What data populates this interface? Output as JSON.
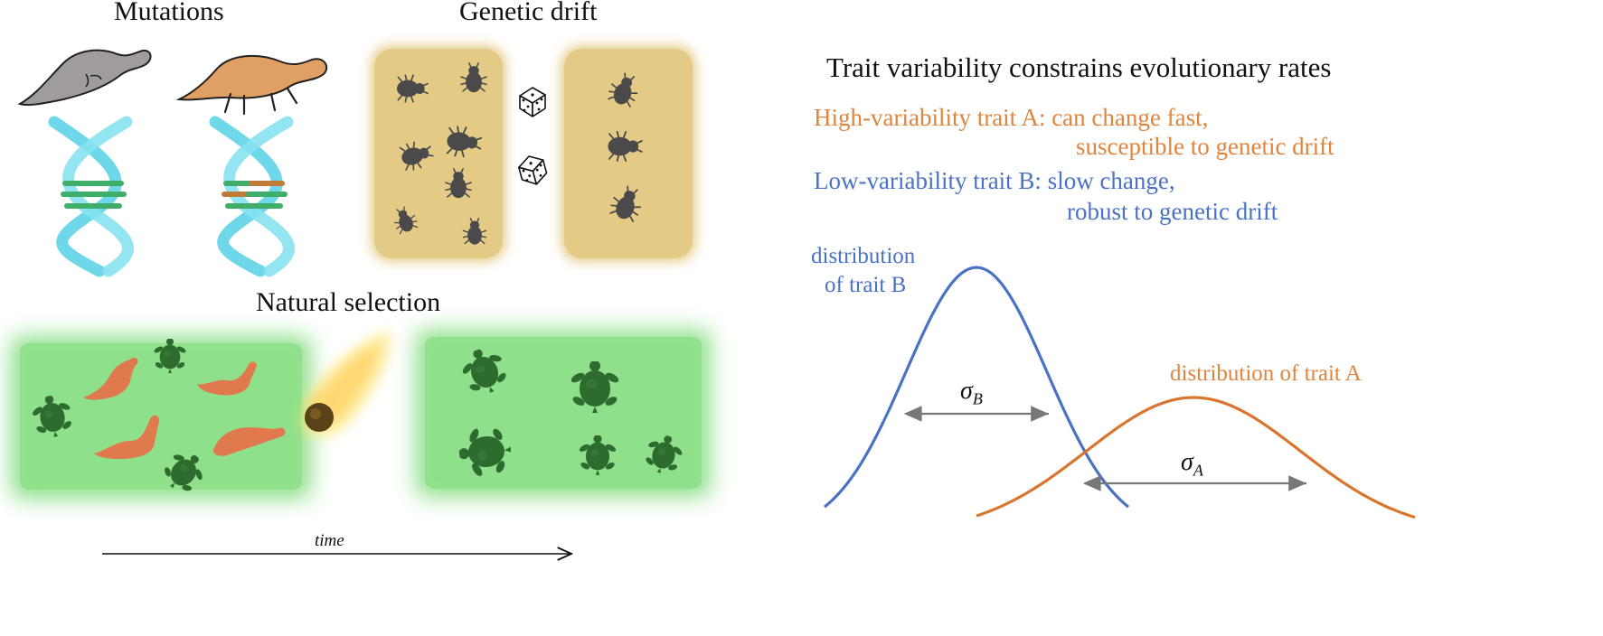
{
  "headings": {
    "mutations": "Mutations",
    "genetic_drift": "Genetic drift",
    "natural_selection": "Natural selection",
    "right_title": "Trait variability constrains evolutionary rates"
  },
  "trait_a": {
    "line1": "High-variability trait A: can change fast,",
    "line2": "susceptible to genetic drift",
    "distribution_label": "distribution of trait A",
    "sigma_symbol": "σ",
    "sigma_sub": "A"
  },
  "trait_b": {
    "line1": "Low-variability trait B: slow change,",
    "line2": "robust to genetic drift",
    "distribution_label_line1": "distribution",
    "distribution_label_line2": "of trait B",
    "sigma_symbol": "σ",
    "sigma_sub": "B"
  },
  "time_axis": {
    "label": "time"
  },
  "colors": {
    "orange": "#d9752c",
    "blue": "#4a72c4",
    "grass": "#8fe08a",
    "grass_edge": "#bff0bb",
    "turtle": "#2e6b2e",
    "dino": "#e07a4d",
    "drift_box": "#e6cf8e",
    "beetle": "#4a4a4a",
    "dna": "#5fd3e8"
  },
  "icons": {
    "dice": "dice-icon",
    "meteor": "meteor-icon",
    "turtle": "turtle-icon",
    "dinosaur": "dinosaur-icon",
    "beetle": "beetle-icon",
    "dna": "dna-helix-icon"
  }
}
